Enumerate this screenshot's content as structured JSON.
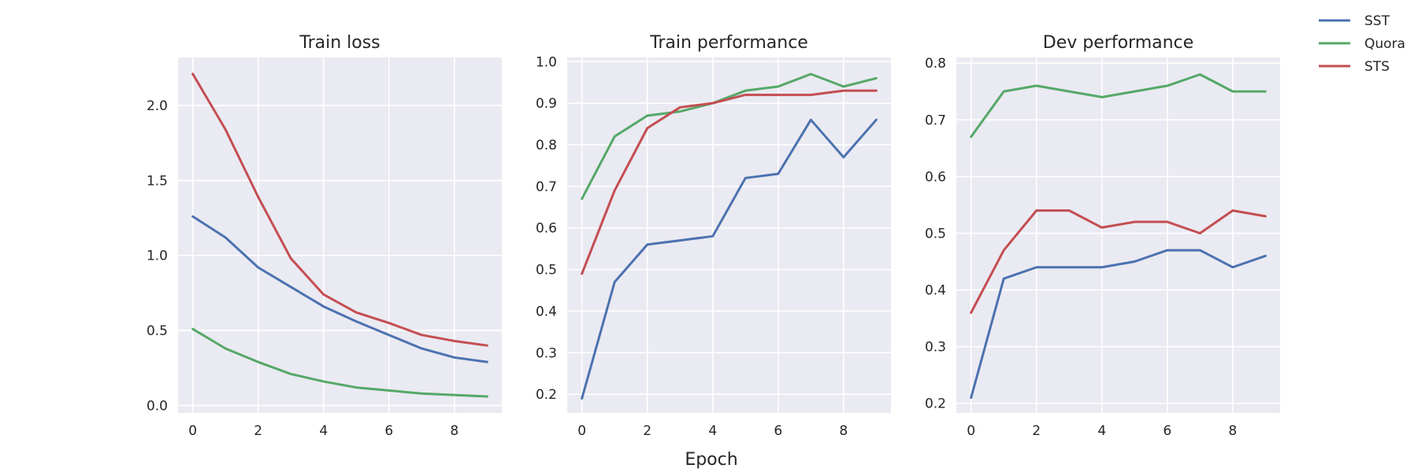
{
  "figure": {
    "xlabel": "Epoch"
  },
  "legend": {
    "placement": "top-right",
    "entries": [
      {
        "name": "SST",
        "color": "#4c72b0"
      },
      {
        "name": "Quora",
        "color": "#55a868"
      },
      {
        "name": "STS",
        "color": "#c44e52"
      }
    ]
  },
  "chart_data": [
    {
      "type": "line",
      "title": "Train loss",
      "xlabel": "",
      "ylabel": "",
      "x": [
        0,
        1,
        2,
        3,
        4,
        5,
        6,
        7,
        8,
        9
      ],
      "xlim": [
        -0.45,
        9.45
      ],
      "ylim": [
        -0.05,
        2.32
      ],
      "xticks": [
        0,
        2,
        4,
        6,
        8
      ],
      "xtick_labels": [
        "0",
        "2",
        "4",
        "6",
        "8"
      ],
      "yticks": [
        0.0,
        0.5,
        1.0,
        1.5,
        2.0
      ],
      "ytick_labels": [
        "0.0",
        "0.5",
        "1.0",
        "1.5",
        "2.0"
      ],
      "grid": true,
      "series": [
        {
          "name": "SST",
          "color": "#4c72b0",
          "values": [
            1.26,
            1.12,
            0.92,
            0.79,
            0.66,
            0.56,
            0.47,
            0.38,
            0.32,
            0.29
          ]
        },
        {
          "name": "Quora",
          "color": "#55a868",
          "values": [
            0.51,
            0.38,
            0.29,
            0.21,
            0.16,
            0.12,
            0.1,
            0.08,
            0.07,
            0.06
          ]
        },
        {
          "name": "STS",
          "color": "#c44e52",
          "values": [
            2.21,
            1.84,
            1.39,
            0.98,
            0.74,
            0.62,
            0.55,
            0.47,
            0.43,
            0.4
          ]
        }
      ]
    },
    {
      "type": "line",
      "title": "Train performance",
      "xlabel": "",
      "ylabel": "",
      "x": [
        0,
        1,
        2,
        3,
        4,
        5,
        6,
        7,
        8,
        9
      ],
      "xlim": [
        -0.45,
        9.45
      ],
      "ylim": [
        0.155,
        1.01
      ],
      "xticks": [
        0,
        2,
        4,
        6,
        8
      ],
      "xtick_labels": [
        "0",
        "2",
        "4",
        "6",
        "8"
      ],
      "yticks": [
        0.2,
        0.3,
        0.4,
        0.5,
        0.6,
        0.7,
        0.8,
        0.9,
        1.0
      ],
      "ytick_labels": [
        "0.2",
        "0.3",
        "0.4",
        "0.5",
        "0.6",
        "0.7",
        "0.8",
        "0.9",
        "1.0"
      ],
      "grid": true,
      "series": [
        {
          "name": "SST",
          "color": "#4c72b0",
          "values": [
            0.19,
            0.47,
            0.56,
            0.57,
            0.58,
            0.72,
            0.73,
            0.86,
            0.77,
            0.86
          ]
        },
        {
          "name": "Quora",
          "color": "#55a868",
          "values": [
            0.67,
            0.82,
            0.87,
            0.88,
            0.9,
            0.93,
            0.94,
            0.97,
            0.94,
            0.96
          ]
        },
        {
          "name": "STS",
          "color": "#c44e52",
          "values": [
            0.49,
            0.69,
            0.84,
            0.89,
            0.9,
            0.92,
            0.92,
            0.92,
            0.93,
            0.93
          ]
        }
      ]
    },
    {
      "type": "line",
      "title": "Dev performance",
      "xlabel": "",
      "ylabel": "",
      "x": [
        0,
        1,
        2,
        3,
        4,
        5,
        6,
        7,
        8,
        9
      ],
      "xlim": [
        -0.45,
        9.45
      ],
      "ylim": [
        0.183,
        0.81
      ],
      "xticks": [
        0,
        2,
        4,
        6,
        8
      ],
      "xtick_labels": [
        "0",
        "2",
        "4",
        "6",
        "8"
      ],
      "yticks": [
        0.2,
        0.3,
        0.4,
        0.5,
        0.6,
        0.7,
        0.8
      ],
      "ytick_labels": [
        "0.2",
        "0.3",
        "0.4",
        "0.5",
        "0.6",
        "0.7",
        "0.8"
      ],
      "grid": true,
      "series": [
        {
          "name": "SST",
          "color": "#4c72b0",
          "values": [
            0.21,
            0.42,
            0.44,
            0.44,
            0.44,
            0.45,
            0.47,
            0.47,
            0.44,
            0.46
          ]
        },
        {
          "name": "Quora",
          "color": "#55a868",
          "values": [
            0.67,
            0.75,
            0.76,
            0.75,
            0.74,
            0.75,
            0.76,
            0.78,
            0.75,
            0.75
          ]
        },
        {
          "name": "STS",
          "color": "#c44e52",
          "values": [
            0.36,
            0.47,
            0.54,
            0.54,
            0.51,
            0.52,
            0.52,
            0.5,
            0.54,
            0.53
          ]
        }
      ]
    }
  ]
}
